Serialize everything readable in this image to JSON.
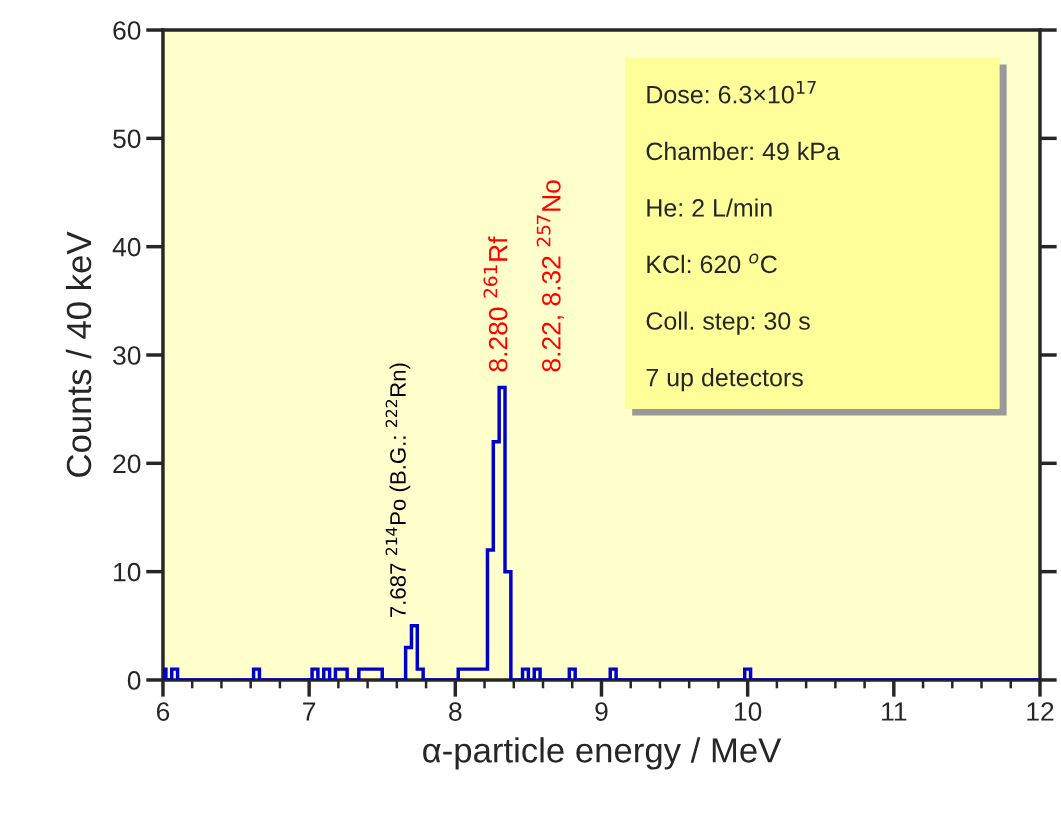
{
  "chart_data": {
    "type": "histogram",
    "xlabel": "α-particle energy / MeV",
    "ylabel": "Counts / 40 keV",
    "bins": [
      6.0,
      6.02,
      6.06,
      6.1,
      6.62,
      6.66,
      7.02,
      7.06,
      7.1,
      7.14,
      7.18,
      7.26,
      7.34,
      7.5,
      7.66,
      7.7,
      7.74,
      7.78,
      8.02,
      8.22,
      8.26,
      8.3,
      8.34,
      8.38,
      8.46,
      8.5,
      8.54,
      8.58,
      8.78,
      8.82,
      9.06,
      9.1,
      9.98,
      10.02,
      12.0
    ],
    "values": [
      1,
      0,
      1,
      0,
      1,
      0,
      1,
      0,
      1,
      0,
      1,
      0,
      1,
      0,
      3,
      5,
      1,
      0,
      1,
      12,
      22,
      27,
      10,
      0,
      1,
      0,
      1,
      0,
      1,
      0,
      1,
      0,
      1,
      0
    ],
    "color": "#0000cc",
    "xlim": [
      6,
      12
    ],
    "xticks": [
      6,
      7,
      8,
      9,
      10,
      11,
      12
    ],
    "ylim": [
      0,
      60
    ],
    "yticks": [
      0,
      10,
      20,
      30,
      40,
      50,
      60
    ],
    "grid": false,
    "legend": false,
    "annotations": [
      "Dose: 6.3×10$^{17}$",
      "Chamber: 49 kPa",
      "He: 2 L/min",
      "KCl: 620 $^{o}$C",
      "Coll. step: 30 s",
      "7 up detectors",
      "7.687 $^{214}$Po (B.G.: $^{222}$Rn)",
      "8.280 $^{261}$Rf",
      "8.22, 8.32 $^{257}$No"
    ]
  }
}
